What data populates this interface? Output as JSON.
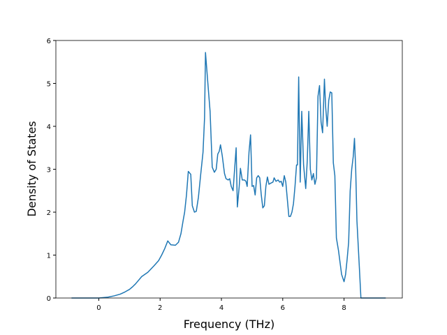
{
  "chart_data": {
    "type": "line",
    "xlabel": "Frequency (THz)",
    "ylabel": "Density of States",
    "x": [
      -0.89,
      0.0,
      0.3,
      0.5,
      0.7,
      0.85,
      1.0,
      1.1,
      1.2,
      1.4,
      1.6,
      1.8,
      1.95,
      2.05,
      2.15,
      2.25,
      2.35,
      2.5,
      2.6,
      2.68,
      2.75,
      2.8,
      2.86,
      2.92,
      3.0,
      3.05,
      3.12,
      3.18,
      3.25,
      3.32,
      3.4,
      3.45,
      3.48,
      3.58,
      3.63,
      3.7,
      3.77,
      3.83,
      3.88,
      3.93,
      3.97,
      4.03,
      4.1,
      4.15,
      4.22,
      4.27,
      4.32,
      4.38,
      4.43,
      4.48,
      4.52,
      4.58,
      4.62,
      4.68,
      4.75,
      4.8,
      4.84,
      4.9,
      4.95,
      5.0,
      5.05,
      5.1,
      5.15,
      5.2,
      5.25,
      5.3,
      5.35,
      5.4,
      5.45,
      5.5,
      5.55,
      5.62,
      5.68,
      5.72,
      5.78,
      5.85,
      5.9,
      5.95,
      6.0,
      6.05,
      6.1,
      6.15,
      6.2,
      6.25,
      6.3,
      6.35,
      6.4,
      6.45,
      6.48,
      6.52,
      6.57,
      6.62,
      6.68,
      6.75,
      6.8,
      6.85,
      6.9,
      6.95,
      7.0,
      7.05,
      7.1,
      7.15,
      7.2,
      7.25,
      7.3,
      7.36,
      7.4,
      7.45,
      7.5,
      7.55,
      7.6,
      7.65,
      7.7,
      7.75,
      7.82,
      7.92,
      8.0,
      8.05,
      8.1,
      8.15,
      8.2,
      8.25,
      8.3,
      8.34,
      8.38,
      8.42,
      8.5,
      8.55,
      8.7,
      9.36
    ],
    "series": [
      {
        "color": "#1f77b4",
        "values": [
          0,
          0,
          0.02,
          0.05,
          0.09,
          0.14,
          0.2,
          0.26,
          0.33,
          0.5,
          0.6,
          0.75,
          0.87,
          1.0,
          1.15,
          1.33,
          1.24,
          1.23,
          1.3,
          1.5,
          1.8,
          2.0,
          2.4,
          2.95,
          2.88,
          2.15,
          2.0,
          2.02,
          2.35,
          2.85,
          3.4,
          4.2,
          5.72,
          4.8,
          4.35,
          3.05,
          2.93,
          3.0,
          3.35,
          3.42,
          3.57,
          3.3,
          2.9,
          2.78,
          2.75,
          2.78,
          2.6,
          2.5,
          3.0,
          3.5,
          2.12,
          2.6,
          3.02,
          2.75,
          2.75,
          2.72,
          2.6,
          3.4,
          3.8,
          2.6,
          2.62,
          2.4,
          2.8,
          2.85,
          2.8,
          2.4,
          2.1,
          2.15,
          2.6,
          2.82,
          2.65,
          2.68,
          2.7,
          2.8,
          2.72,
          2.75,
          2.7,
          2.72,
          2.6,
          2.85,
          2.7,
          2.3,
          1.9,
          1.9,
          2.0,
          2.2,
          2.6,
          3.1,
          3.1,
          5.15,
          2.7,
          4.35,
          3.1,
          2.55,
          3.2,
          4.35,
          3.0,
          2.75,
          2.9,
          2.65,
          2.8,
          4.7,
          4.95,
          4.1,
          3.85,
          5.1,
          4.45,
          4.0,
          4.6,
          4.8,
          4.78,
          3.15,
          2.85,
          1.4,
          1.1,
          0.55,
          0.38,
          0.55,
          0.9,
          1.3,
          2.5,
          3.0,
          3.3,
          3.72,
          3.0,
          1.8,
          0.7,
          0,
          0,
          0
        ]
      }
    ],
    "xlim": [
      -1.4,
      9.9
    ],
    "xticks": [
      0,
      2,
      4,
      6,
      8
    ],
    "ylim": [
      0,
      6
    ],
    "yticks": [
      0,
      1,
      2,
      3,
      4,
      5,
      6
    ]
  }
}
